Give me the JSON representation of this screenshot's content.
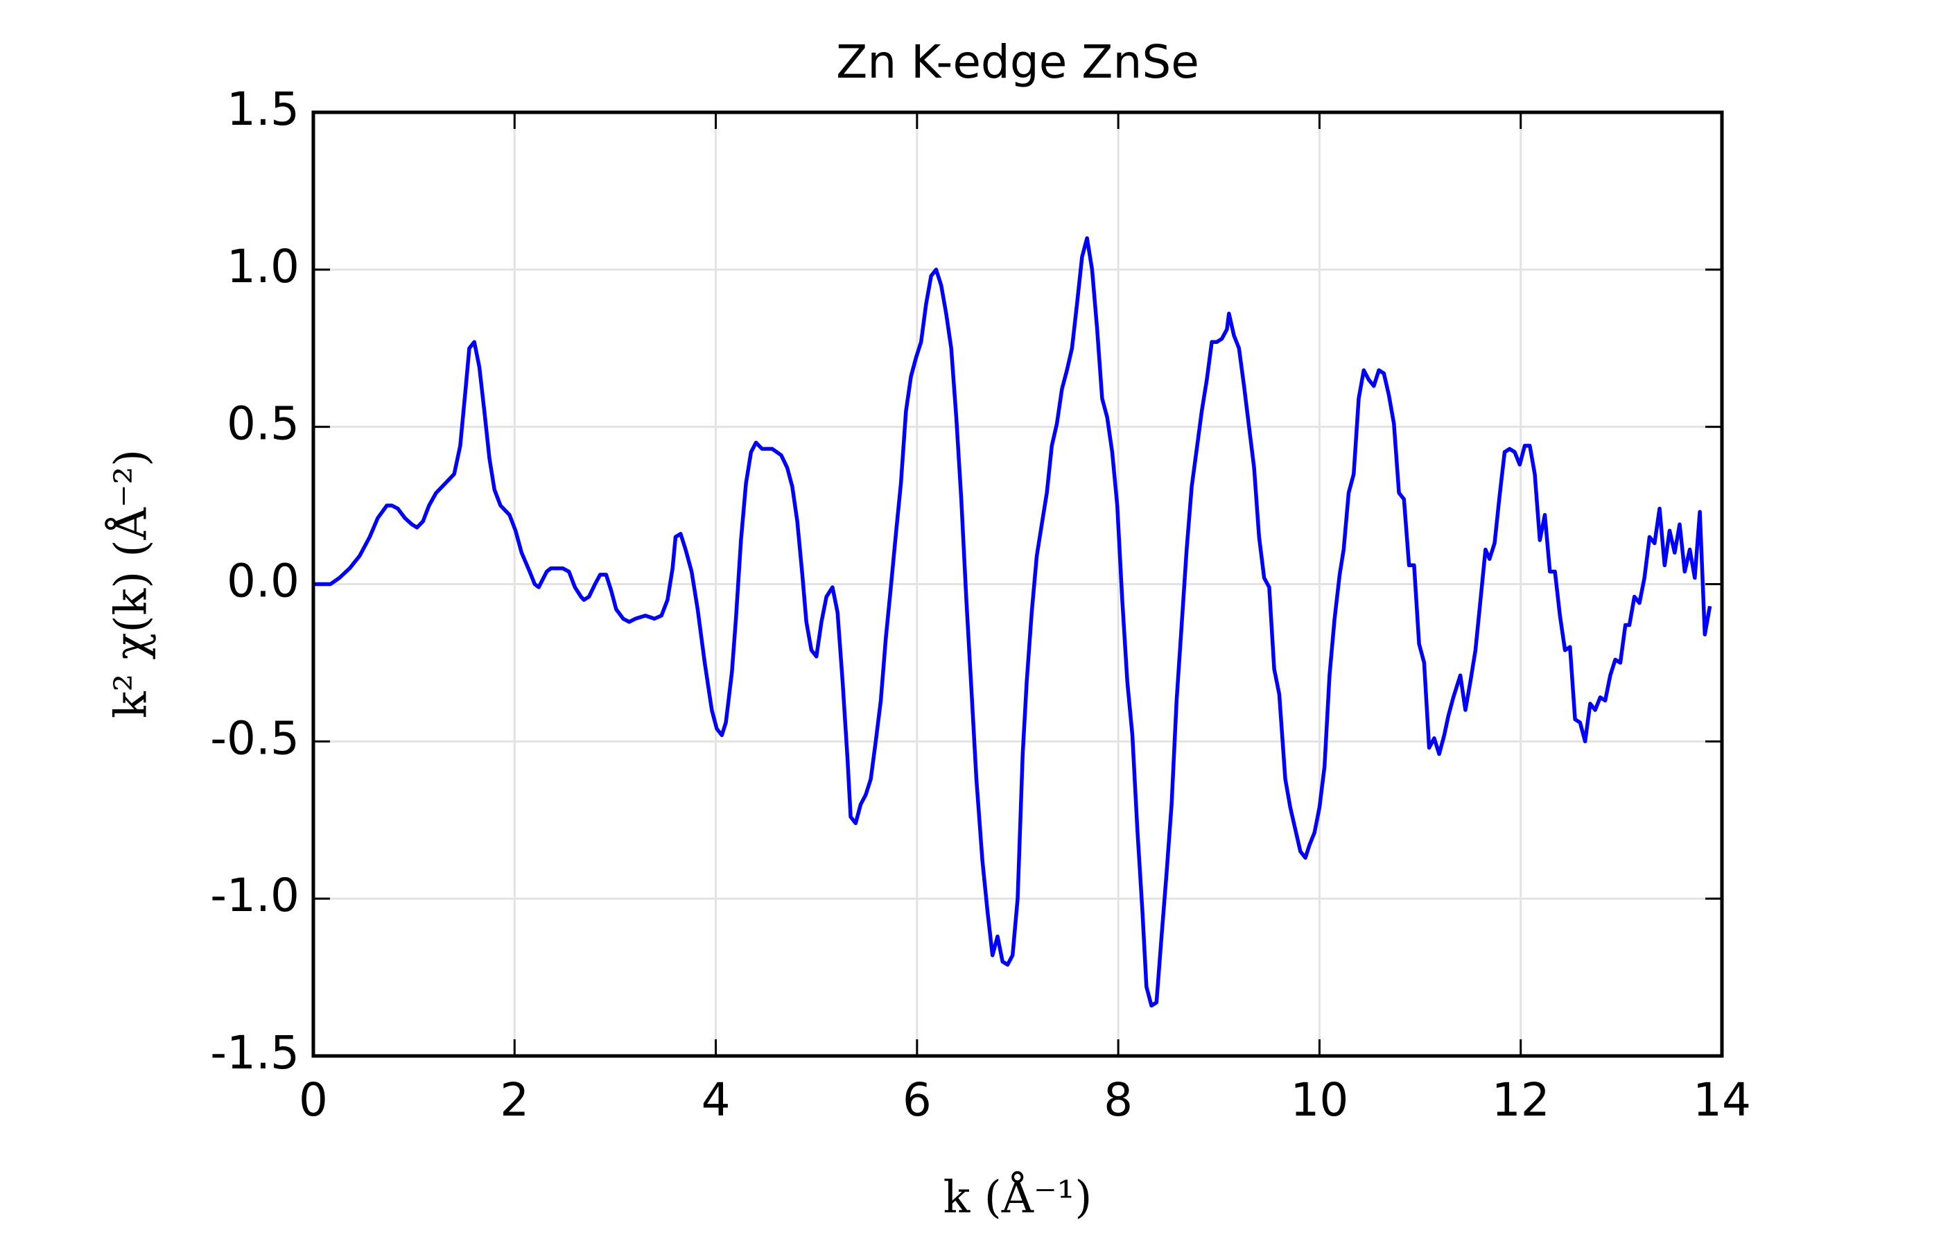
{
  "chart_data": {
    "type": "line",
    "title": "Zn K-edge ZnSe",
    "x_label": "k (Å⁻¹)",
    "y_label": "k² χ(k) (Å⁻²)",
    "xlim": [
      0,
      14
    ],
    "xticks": [
      0,
      2,
      4,
      6,
      8,
      10,
      12,
      14
    ],
    "ylim": [
      -1.5,
      1.5
    ],
    "yticks": [
      -1.5,
      {
        "value": -1.0,
        "label": "-1.0"
      },
      -0.5,
      {
        "value": 0,
        "label": "0.0"
      },
      0.5,
      {
        "value": 1.0,
        "label": "1.0"
      },
      1.5
    ],
    "grid": true,
    "x": [
      0,
      0.17,
      0.26,
      0.36,
      0.46,
      0.56,
      0.64,
      0.73,
      0.78,
      0.84,
      0.91,
      0.98,
      1.03,
      1.09,
      1.15,
      1.22,
      1.28,
      1.34,
      1.4,
      1.46,
      1.51,
      1.55,
      1.6,
      1.65,
      1.7,
      1.75,
      1.8,
      1.86,
      1.95,
      2.01,
      2.07,
      2.15,
      2.2,
      2.24,
      2.32,
      2.36,
      2.48,
      2.54,
      2.6,
      2.66,
      2.69,
      2.74,
      2.8,
      2.85,
      2.91,
      2.96,
      3.01,
      3.08,
      3.14,
      3.2,
      3.3,
      3.39,
      3.46,
      3.52,
      3.57,
      3.6,
      3.65,
      3.7,
      3.76,
      3.82,
      3.89,
      3.96,
      4.01,
      4.06,
      4.1,
      4.16,
      4.2,
      4.25,
      4.3,
      4.35,
      4.4,
      4.46,
      4.56,
      4.65,
      4.71,
      4.76,
      4.81,
      4.86,
      4.9,
      4.95,
      5.0,
      5.05,
      5.1,
      5.16,
      5.21,
      5.26,
      5.31,
      5.34,
      5.39,
      5.44,
      5.49,
      5.54,
      5.59,
      5.64,
      5.69,
      5.74,
      5.79,
      5.84,
      5.89,
      5.94,
      5.99,
      6.04,
      6.09,
      6.14,
      6.19,
      6.24,
      6.29,
      6.34,
      6.39,
      6.44,
      6.49,
      6.54,
      6.59,
      6.65,
      6.7,
      6.75,
      6.8,
      6.85,
      6.9,
      6.95,
      7.0,
      7.05,
      7.09,
      7.14,
      7.19,
      7.24,
      7.29,
      7.34,
      7.39,
      7.44,
      7.49,
      7.54,
      7.59,
      7.64,
      7.69,
      7.74,
      7.79,
      7.84,
      7.89,
      7.94,
      7.99,
      8.04,
      8.09,
      8.14,
      8.19,
      8.24,
      8.28,
      8.33,
      8.38,
      8.43,
      8.48,
      8.53,
      8.58,
      8.63,
      8.68,
      8.73,
      8.78,
      8.83,
      8.88,
      8.93,
      8.98,
      9.03,
      9.08,
      9.1,
      9.15,
      9.2,
      9.25,
      9.3,
      9.35,
      9.4,
      9.45,
      9.5,
      9.55,
      9.6,
      9.66,
      9.71,
      9.76,
      9.81,
      9.86,
      9.9,
      9.95,
      10.0,
      10.05,
      10.1,
      10.15,
      10.2,
      10.24,
      10.29,
      10.34,
      10.39,
      10.44,
      10.49,
      10.54,
      10.59,
      10.64,
      10.69,
      10.74,
      10.79,
      10.84,
      10.89,
      10.94,
      10.99,
      11.04,
      11.09,
      11.14,
      11.19,
      11.24,
      11.28,
      11.33,
      11.4,
      11.45,
      11.5,
      11.55,
      11.6,
      11.65,
      11.69,
      11.74,
      11.79,
      11.84,
      11.89,
      11.94,
      11.99,
      12.04,
      12.09,
      12.14,
      12.19,
      12.24,
      12.29,
      12.34,
      12.39,
      12.44,
      12.49,
      12.54,
      12.59,
      12.64,
      12.69,
      12.74,
      12.79,
      12.84,
      12.89,
      12.94,
      12.99,
      13.04,
      13.08,
      13.13,
      13.18,
      13.23,
      13.28,
      13.33,
      13.38,
      13.43,
      13.48,
      13.53,
      13.58,
      13.63,
      13.68,
      13.73,
      13.78,
      13.83,
      13.88
    ],
    "series": [
      {
        "color": "#0000ff",
        "values": [
          0,
          0.0,
          0.02,
          0.05,
          0.09,
          0.15,
          0.21,
          0.25,
          0.25,
          0.24,
          0.21,
          0.19,
          0.18,
          0.2,
          0.25,
          0.29,
          0.31,
          0.33,
          0.35,
          0.44,
          0.61,
          0.75,
          0.77,
          0.69,
          0.55,
          0.4,
          0.3,
          0.25,
          0.22,
          0.17,
          0.1,
          0.04,
          0.0,
          -0.01,
          0.04,
          0.05,
          0.05,
          0.04,
          -0.01,
          -0.04,
          -0.05,
          -0.04,
          0.0,
          0.03,
          0.03,
          -0.02,
          -0.08,
          -0.11,
          -0.12,
          -0.11,
          -0.1,
          -0.11,
          -0.1,
          -0.05,
          0.05,
          0.15,
          0.16,
          0.11,
          0.04,
          -0.08,
          -0.25,
          -0.4,
          -0.46,
          -0.48,
          -0.44,
          -0.28,
          -0.11,
          0.14,
          0.32,
          0.42,
          0.45,
          0.43,
          0.43,
          0.41,
          0.37,
          0.31,
          0.2,
          0.03,
          -0.12,
          -0.21,
          -0.23,
          -0.12,
          -0.04,
          -0.01,
          -0.09,
          -0.31,
          -0.56,
          -0.74,
          -0.76,
          -0.7,
          -0.67,
          -0.62,
          -0.5,
          -0.37,
          -0.17,
          -0.01,
          0.16,
          0.32,
          0.55,
          0.66,
          0.72,
          0.77,
          0.89,
          0.98,
          1.0,
          0.95,
          0.86,
          0.75,
          0.53,
          0.27,
          -0.05,
          -0.33,
          -0.62,
          -0.88,
          -1.04,
          -1.18,
          -1.12,
          -1.2,
          -1.21,
          -1.18,
          -1.0,
          -0.54,
          -0.31,
          -0.09,
          0.09,
          0.19,
          0.29,
          0.44,
          0.51,
          0.62,
          0.68,
          0.75,
          0.89,
          1.04,
          1.1,
          1.0,
          0.81,
          0.59,
          0.53,
          0.42,
          0.25,
          -0.05,
          -0.31,
          -0.48,
          -0.78,
          -1.04,
          -1.28,
          -1.34,
          -1.33,
          -1.12,
          -0.92,
          -0.7,
          -0.37,
          -0.13,
          0.11,
          0.31,
          0.43,
          0.55,
          0.65,
          0.77,
          0.77,
          0.78,
          0.81,
          0.86,
          0.79,
          0.75,
          0.63,
          0.5,
          0.37,
          0.15,
          0.02,
          -0.01,
          -0.27,
          -0.35,
          -0.62,
          -0.71,
          -0.78,
          -0.85,
          -0.87,
          -0.83,
          -0.79,
          -0.71,
          -0.58,
          -0.29,
          -0.11,
          0.03,
          0.11,
          0.29,
          0.35,
          0.59,
          0.68,
          0.65,
          0.63,
          0.68,
          0.67,
          0.6,
          0.51,
          0.29,
          0.27,
          0.06,
          0.06,
          -0.19,
          -0.25,
          -0.52,
          -0.49,
          -0.54,
          -0.48,
          -0.42,
          -0.36,
          -0.29,
          -0.4,
          -0.31,
          -0.21,
          -0.05,
          0.11,
          0.08,
          0.13,
          0.28,
          0.42,
          0.43,
          0.42,
          0.38,
          0.44,
          0.44,
          0.35,
          0.14,
          0.22,
          0.04,
          0.04,
          -0.1,
          -0.21,
          -0.2,
          -0.43,
          -0.44,
          -0.5,
          -0.38,
          -0.4,
          -0.36,
          -0.37,
          -0.29,
          -0.24,
          -0.25,
          -0.13,
          -0.13,
          -0.04,
          -0.06,
          0.02,
          0.15,
          0.13,
          0.24,
          0.06,
          0.17,
          0.1,
          0.19,
          0.04,
          0.11,
          0.02,
          0.23,
          -0.16,
          -0.07
        ]
      }
    ]
  }
}
